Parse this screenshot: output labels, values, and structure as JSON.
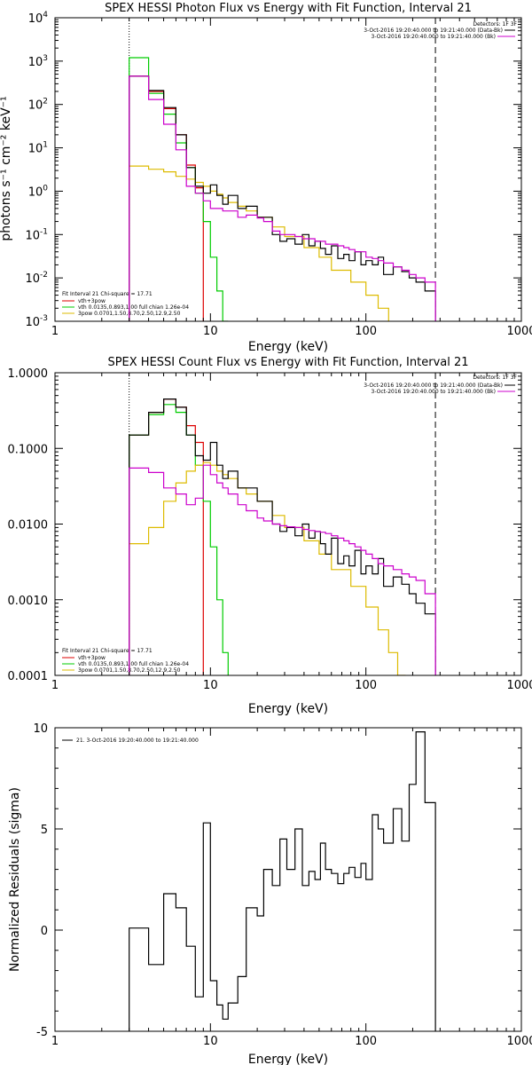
{
  "panels": [
    {
      "id": "photon",
      "title": "SPEX HESSI Photon Flux vs Energy with Fit Function, Interval 21",
      "xlabel": "Energy (keV)",
      "ylabel": "photons s⁻¹ cm⁻² keV⁻¹",
      "detectors": "Detectors: 1F 3F",
      "time_lines": [
        {
          "text": "3-Oct-2016 19:20:40.000 to 19:21:40.000 (Data-Bk)",
          "color": "#000000"
        },
        {
          "text": "3-Oct-2016 19:20:40.000 to 19:21:40.000 (Bk)",
          "color": "#cc00cc"
        }
      ],
      "legend": {
        "header": "Fit Interval 21    Chi-square = 17.71",
        "entries": [
          {
            "text": "vth+3pow",
            "color": "#dd0000"
          },
          {
            "text": "vth 0.0135,0.893,1.00  full chian 1.26e-04",
            "color": "#00cc00"
          },
          {
            "text": "3pow 0.0701,1.50,8.70,2.50,12.9,2.50",
            "color": "#ddbb00"
          }
        ]
      }
    },
    {
      "id": "count",
      "title": "SPEX HESSI Count Flux vs Energy with Fit Function, Interval 21",
      "xlabel": "Energy (keV)",
      "ylabel": "",
      "detectors": "Detectors: 1F 3F",
      "time_lines": [
        {
          "text": "3-Oct-2016 19:20:40.000 to 19:21:40.000 (Data-Bk)",
          "color": "#000000"
        },
        {
          "text": "3-Oct-2016 19:20:40.000 to 19:21:40.000 (Bk)",
          "color": "#cc00cc"
        }
      ],
      "legend": {
        "header": "Fit Interval 21    Chi-square = 17.71",
        "entries": [
          {
            "text": "vth+3pow",
            "color": "#dd0000"
          },
          {
            "text": "vth 0.0135,0.893,1.00  full chian 1.26e-04",
            "color": "#00cc00"
          },
          {
            "text": "3pow 0.0701,1.50,8.70,2.50,12.9,2.50",
            "color": "#ddbb00"
          }
        ]
      }
    },
    {
      "id": "residuals",
      "title": "",
      "xlabel": "Energy (keV)",
      "ylabel": "Normalized Residuals (sigma)",
      "legend_line": "21.  3-Oct-2016 19:20:40.000 to 19:21:40.000"
    }
  ],
  "chart_data": [
    {
      "type": "line",
      "title": "SPEX HESSI Photon Flux vs Energy with Fit Function, Interval 21",
      "xlabel": "Energy (keV)",
      "ylabel": "photons s⁻¹ cm⁻² keV⁻¹",
      "xscale": "log",
      "yscale": "log",
      "xlim": [
        1,
        1000
      ],
      "ylim": [
        0.001,
        10000
      ],
      "xticks": [
        1,
        10,
        100,
        1000
      ],
      "xtick_labels": [
        "1",
        "10",
        "100",
        "1000"
      ],
      "yticks": [
        0.001,
        0.01,
        0.1,
        1,
        10,
        100,
        1000,
        10000
      ],
      "ytick_labels": [
        [
          "10",
          "-3"
        ],
        [
          "10",
          "-2"
        ],
        [
          "10",
          "-1"
        ],
        [
          "10",
          "0"
        ],
        [
          "10",
          "1"
        ],
        [
          "10",
          "2"
        ],
        [
          "10",
          "3"
        ],
        [
          "10",
          "4"
        ]
      ],
      "vlines": [
        {
          "x": 3,
          "style": "dotted"
        },
        {
          "x": 280,
          "style": "dashed"
        }
      ],
      "series": [
        {
          "color": "#dd0000",
          "edges": [
            3,
            4,
            5,
            6,
            7,
            8,
            9
          ],
          "values": [
            450,
            200,
            80,
            20,
            4,
            1.2
          ]
        },
        {
          "color": "#00cc00",
          "edges": [
            3,
            4,
            5,
            6,
            7,
            8,
            9,
            10,
            11,
            12,
            13
          ],
          "values": [
            1200,
            180,
            60,
            13,
            3.5,
            0.9,
            0.2,
            0.03,
            0.005,
            0.001
          ]
        },
        {
          "color": "#ddbb00",
          "edges": [
            3,
            4,
            5,
            6,
            7,
            8,
            9,
            10,
            11,
            12,
            13,
            15,
            17,
            20,
            25,
            30,
            40,
            50,
            60,
            80,
            100,
            120,
            140
          ],
          "values": [
            3.8,
            3.2,
            2.8,
            2.2,
            1.9,
            1.6,
            1.3,
            1.0,
            0.85,
            0.7,
            0.55,
            0.45,
            0.35,
            0.25,
            0.15,
            0.09,
            0.05,
            0.03,
            0.015,
            0.008,
            0.004,
            0.002
          ]
        },
        {
          "color": "#000000",
          "edges": [
            3,
            4,
            5,
            6,
            7,
            8,
            9,
            10,
            11,
            12,
            13,
            15,
            17,
            20,
            22,
            25,
            28,
            31,
            35,
            39,
            43,
            47,
            51,
            55,
            60,
            66,
            72,
            78,
            85,
            93,
            100,
            110,
            120,
            130,
            150,
            170,
            190,
            210,
            240,
            280
          ],
          "values": [
            450,
            210,
            85,
            20,
            3.5,
            1.3,
            0.9,
            1.4,
            0.8,
            0.5,
            0.8,
            0.4,
            0.45,
            0.25,
            0.25,
            0.1,
            0.07,
            0.08,
            0.06,
            0.1,
            0.055,
            0.07,
            0.048,
            0.035,
            0.055,
            0.028,
            0.035,
            0.025,
            0.04,
            0.02,
            0.025,
            0.02,
            0.03,
            0.012,
            0.018,
            0.014,
            0.01,
            0.008,
            0.005
          ]
        },
        {
          "color": "#cc00cc",
          "edges": [
            3,
            4,
            5,
            6,
            7,
            8,
            9,
            10,
            11,
            12,
            13,
            15,
            17,
            20,
            22,
            25,
            28,
            31,
            35,
            39,
            43,
            47,
            51,
            55,
            60,
            66,
            72,
            78,
            85,
            93,
            100,
            110,
            120,
            130,
            150,
            170,
            190,
            210,
            240,
            280
          ],
          "values": [
            450,
            130,
            35,
            9,
            1.3,
            0.9,
            0.6,
            0.4,
            0.4,
            0.35,
            0.35,
            0.25,
            0.28,
            0.24,
            0.2,
            0.12,
            0.1,
            0.1,
            0.09,
            0.08,
            0.08,
            0.07,
            0.07,
            0.06,
            0.06,
            0.055,
            0.05,
            0.045,
            0.04,
            0.04,
            0.03,
            0.028,
            0.025,
            0.022,
            0.018,
            0.015,
            0.012,
            0.01,
            0.008
          ]
        }
      ]
    },
    {
      "type": "line",
      "title": "SPEX HESSI Count Flux vs Energy with Fit Function, Interval 21",
      "xlabel": "Energy (keV)",
      "ylabel": "",
      "xscale": "log",
      "yscale": "log",
      "xlim": [
        1,
        1000
      ],
      "ylim": [
        0.0001,
        1
      ],
      "xticks": [
        1,
        10,
        100,
        1000
      ],
      "xtick_labels": [
        "1",
        "10",
        "100",
        "1000"
      ],
      "yticks": [
        0.0001,
        0.001,
        0.01,
        0.1,
        1
      ],
      "ytick_labels": [
        [
          "0.0001"
        ],
        [
          "0.0010"
        ],
        [
          "0.0100"
        ],
        [
          "0.1000"
        ],
        [
          "1.0000"
        ]
      ],
      "vlines": [
        {
          "x": 3,
          "style": "dotted"
        },
        {
          "x": 280,
          "style": "dashed"
        }
      ],
      "series": [
        {
          "color": "#dd0000",
          "edges": [
            3,
            4,
            5,
            6,
            7,
            8,
            9
          ],
          "values": [
            0.15,
            0.3,
            0.45,
            0.35,
            0.2,
            0.12
          ]
        },
        {
          "color": "#00cc00",
          "edges": [
            3,
            4,
            5,
            6,
            7,
            8,
            9,
            10,
            11,
            12,
            13
          ],
          "values": [
            0.15,
            0.28,
            0.38,
            0.3,
            0.15,
            0.06,
            0.02,
            0.005,
            0.001,
            0.0002
          ]
        },
        {
          "color": "#ddbb00",
          "edges": [
            3,
            4,
            5,
            6,
            7,
            8,
            9,
            10,
            11,
            12,
            13,
            15,
            17,
            20,
            25,
            30,
            40,
            50,
            60,
            80,
            100,
            120,
            140,
            160,
            180
          ],
          "values": [
            0.0055,
            0.009,
            0.02,
            0.035,
            0.05,
            0.06,
            0.065,
            0.06,
            0.05,
            0.045,
            0.04,
            0.03,
            0.025,
            0.02,
            0.013,
            0.009,
            0.006,
            0.004,
            0.0025,
            0.0015,
            0.0008,
            0.0004,
            0.0002,
            0.0001
          ]
        },
        {
          "color": "#000000",
          "edges": [
            3,
            4,
            5,
            6,
            7,
            8,
            9,
            10,
            11,
            12,
            13,
            15,
            17,
            20,
            22,
            25,
            28,
            31,
            35,
            39,
            43,
            47,
            51,
            55,
            60,
            66,
            72,
            78,
            85,
            93,
            100,
            110,
            120,
            130,
            150,
            170,
            190,
            210,
            240,
            280
          ],
          "values": [
            0.15,
            0.3,
            0.45,
            0.35,
            0.15,
            0.08,
            0.07,
            0.12,
            0.06,
            0.04,
            0.05,
            0.03,
            0.03,
            0.02,
            0.02,
            0.01,
            0.008,
            0.009,
            0.007,
            0.01,
            0.0065,
            0.008,
            0.0055,
            0.004,
            0.0065,
            0.003,
            0.0038,
            0.0028,
            0.0045,
            0.0022,
            0.0028,
            0.0022,
            0.0035,
            0.0015,
            0.002,
            0.0016,
            0.0012,
            0.0009,
            0.00065
          ]
        },
        {
          "color": "#cc00cc",
          "edges": [
            3,
            4,
            5,
            6,
            7,
            8,
            9,
            10,
            11,
            12,
            13,
            15,
            17,
            20,
            22,
            25,
            28,
            31,
            35,
            39,
            43,
            47,
            51,
            55,
            60,
            66,
            72,
            78,
            85,
            93,
            100,
            110,
            120,
            130,
            150,
            170,
            190,
            210,
            240,
            280
          ],
          "values": [
            0.055,
            0.048,
            0.03,
            0.025,
            0.018,
            0.022,
            0.06,
            0.045,
            0.035,
            0.03,
            0.025,
            0.018,
            0.015,
            0.012,
            0.011,
            0.01,
            0.0095,
            0.0092,
            0.009,
            0.0085,
            0.0082,
            0.008,
            0.0078,
            0.0075,
            0.007,
            0.0065,
            0.006,
            0.0055,
            0.005,
            0.0045,
            0.004,
            0.0035,
            0.003,
            0.0028,
            0.0025,
            0.0022,
            0.002,
            0.0018,
            0.0012
          ]
        }
      ]
    },
    {
      "type": "line",
      "title": "",
      "xlabel": "Energy (keV)",
      "ylabel": "Normalized Residuals (sigma)",
      "xscale": "log",
      "yscale": "linear",
      "xlim": [
        1,
        1000
      ],
      "ylim": [
        -5,
        10
      ],
      "xticks": [
        1,
        10,
        100,
        1000
      ],
      "xtick_labels": [
        "1",
        "10",
        "100",
        "1000"
      ],
      "yticks": [
        -5,
        0,
        5,
        10
      ],
      "ytick_labels": [
        [
          "-5"
        ],
        [
          "0"
        ],
        [
          "5"
        ],
        [
          "10"
        ]
      ],
      "series": [
        {
          "color": "#000000",
          "drop_to_min": true,
          "edges": [
            3,
            4,
            5,
            6,
            7,
            8,
            9,
            10,
            11,
            12,
            13,
            15,
            17,
            20,
            22,
            25,
            28,
            31,
            35,
            39,
            43,
            47,
            51,
            55,
            60,
            66,
            72,
            78,
            85,
            93,
            100,
            110,
            120,
            130,
            150,
            170,
            190,
            210,
            240,
            280
          ],
          "values": [
            0.1,
            -1.7,
            1.8,
            1.1,
            -0.8,
            -3.3,
            5.3,
            -2.5,
            -3.7,
            -4.4,
            -3.6,
            -2.3,
            1.1,
            0.7,
            3.0,
            2.2,
            4.5,
            3.0,
            5.0,
            2.2,
            2.9,
            2.5,
            4.3,
            3.0,
            2.8,
            2.3,
            2.8,
            3.1,
            2.6,
            3.3,
            2.5,
            5.7,
            5.0,
            4.3,
            6.0,
            4.4,
            7.2,
            9.8,
            6.3
          ]
        }
      ]
    }
  ]
}
